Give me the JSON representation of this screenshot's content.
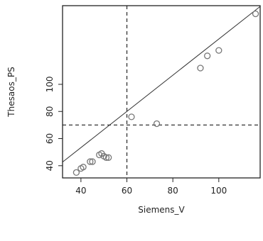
{
  "chart_data": {
    "type": "scatter",
    "title": "",
    "xlabel": "Siemens_V",
    "ylabel": "Thesaos_PS",
    "xlim": [
      32,
      118
    ],
    "ylim": [
      31,
      158
    ],
    "xticks": [
      40,
      60,
      80,
      100
    ],
    "yticks": [
      40,
      60,
      80,
      100
    ],
    "grid": false,
    "points": [
      {
        "x": 38,
        "y": 35
      },
      {
        "x": 40,
        "y": 38
      },
      {
        "x": 41,
        "y": 39
      },
      {
        "x": 44,
        "y": 43
      },
      {
        "x": 45,
        "y": 43
      },
      {
        "x": 48,
        "y": 48
      },
      {
        "x": 49,
        "y": 49
      },
      {
        "x": 50,
        "y": 47
      },
      {
        "x": 51,
        "y": 46
      },
      {
        "x": 52,
        "y": 46
      },
      {
        "x": 62,
        "y": 76
      },
      {
        "x": 73,
        "y": 71
      },
      {
        "x": 92,
        "y": 112
      },
      {
        "x": 95,
        "y": 121
      },
      {
        "x": 100,
        "y": 125
      },
      {
        "x": 116,
        "y": 152
      }
    ],
    "reference_lines": [
      {
        "kind": "vertical",
        "x": 60,
        "style": "dashed"
      },
      {
        "kind": "horizontal",
        "y": 70,
        "style": "dashed"
      },
      {
        "kind": "fit",
        "intercept": 0,
        "slope": 1.334,
        "style": "solid"
      }
    ],
    "marker_color": "#777777",
    "line_color": "#333333"
  }
}
